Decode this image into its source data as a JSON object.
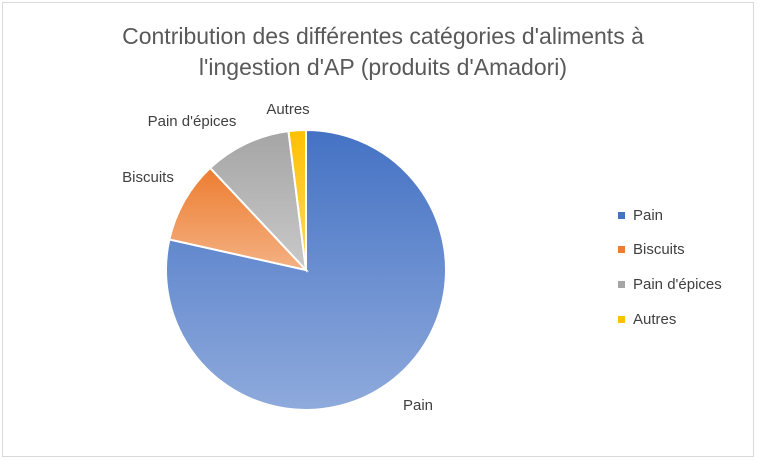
{
  "chart_data": {
    "type": "pie",
    "title_line1": "Contribution des différentes catégories d'aliments à",
    "title_line2": "l'ingestion d'AP (produits d'Amadori)",
    "categories": [
      "Pain",
      "Biscuits",
      "Pain d'épices",
      "Autres"
    ],
    "values": [
      78.5,
      9.5,
      10.0,
      2.0
    ],
    "colors": [
      "#4472c4",
      "#ed7d31",
      "#a5a5a5",
      "#ffc000"
    ],
    "light_colors": [
      "#8faadc",
      "#f4b183",
      "#c9c9c9",
      "#ffd966"
    ],
    "legend_position": "right",
    "data_labels": [
      "Pain",
      "Biscuits",
      "Pain d'épices",
      "Autres"
    ]
  }
}
